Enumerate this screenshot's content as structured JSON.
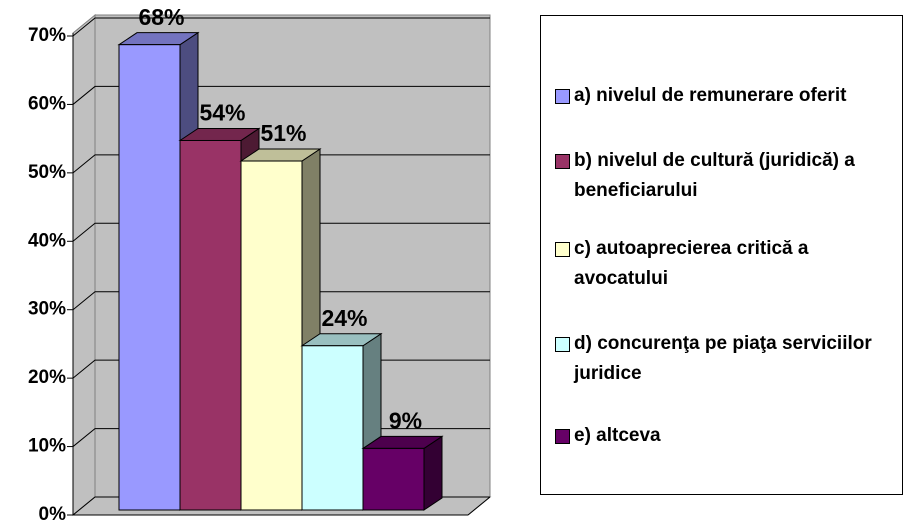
{
  "chart_data": {
    "type": "bar3d",
    "ylim": [
      0,
      70
    ],
    "yticks": [
      {
        "value": 0,
        "label": "0%"
      },
      {
        "value": 10,
        "label": "10%"
      },
      {
        "value": 20,
        "label": "20%"
      },
      {
        "value": 30,
        "label": "30%"
      },
      {
        "value": 40,
        "label": "40%"
      },
      {
        "value": 50,
        "label": "50%"
      },
      {
        "value": 60,
        "label": "60%"
      },
      {
        "value": 70,
        "label": "70%"
      }
    ],
    "grid": true,
    "legend": "right",
    "series": [
      {
        "name": "a) nivelul de remunerare oferit",
        "color": "#9999ff",
        "values": [
          68
        ],
        "value_labels": [
          "68%"
        ]
      },
      {
        "name": "b) nivelul de cultură (juridică) a beneficiarului",
        "color": "#993366",
        "values": [
          54
        ],
        "value_labels": [
          "54%"
        ]
      },
      {
        "name": "c) autoaprecierea critică a avocatului",
        "color": "#ffffcc",
        "values": [
          51
        ],
        "value_labels": [
          "51%"
        ]
      },
      {
        "name": "d) concurenţa pe piaţa serviciilor juridice",
        "color": "#ccffff",
        "values": [
          24
        ],
        "value_labels": [
          "24%"
        ]
      },
      {
        "name": "e) altceva",
        "color": "#660066",
        "values": [
          9
        ],
        "value_labels": [
          "9%"
        ]
      }
    ]
  }
}
